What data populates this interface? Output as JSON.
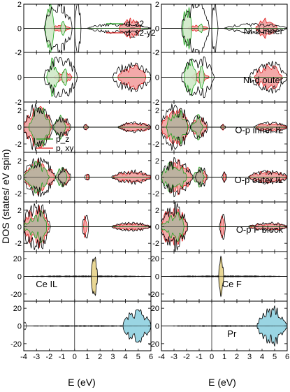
{
  "chart_data": {
    "type": "area",
    "ylabel": "DOS (states/ eV spin)",
    "xlabel": "E (eV)",
    "xlim": [
      -4,
      6
    ],
    "x_ticks": [
      -4,
      -3,
      -2,
      -1,
      0,
      1,
      2,
      3,
      4,
      5,
      6
    ],
    "columns": 2,
    "legend_d": [
      "d_z2",
      "d_x2-y2"
    ],
    "legend_p": [
      "p_z",
      "p_xy"
    ],
    "colors": {
      "total": "#000000",
      "green": "#1aa01a",
      "red": "#e01f1f",
      "red_fill": "#f2a0a0",
      "mix_fill": "#b7b29e",
      "ce_fill": "#e8d48a",
      "pr_fill": "#8fd0e0"
    },
    "panels": [
      {
        "col": 0,
        "row": 0,
        "label": "",
        "ylim": [
          -2,
          2
        ],
        "yticks": [
          -2,
          0,
          2
        ],
        "kind": "d"
      },
      {
        "col": 0,
        "row": 1,
        "label": "",
        "ylim": [
          -2,
          2
        ],
        "yticks": [
          -2,
          0,
          2
        ],
        "kind": "d"
      },
      {
        "col": 0,
        "row": 2,
        "label": "",
        "ylim": [
          -3,
          3
        ],
        "yticks": [
          -2,
          0,
          2
        ],
        "kind": "p"
      },
      {
        "col": 0,
        "row": 3,
        "label": "",
        "ylim": [
          -3,
          3
        ],
        "yticks": [
          -2,
          0,
          2
        ],
        "kind": "p"
      },
      {
        "col": 0,
        "row": 4,
        "label": "",
        "ylim": [
          -3,
          3
        ],
        "yticks": [
          -2,
          0,
          2
        ],
        "kind": "p"
      },
      {
        "col": 0,
        "row": 5,
        "label": "Ce IL",
        "ylim": [
          -28,
          28
        ],
        "yticks": [
          -20,
          0,
          20
        ],
        "kind": "ce"
      },
      {
        "col": 0,
        "row": 6,
        "label": "",
        "ylim": [
          -28,
          28
        ],
        "yticks": [
          -20,
          0,
          20
        ],
        "kind": "pr"
      },
      {
        "col": 1,
        "row": 0,
        "label": "Ni-d inner",
        "ylim": [
          -2,
          2
        ],
        "yticks": [
          -2,
          0,
          2
        ],
        "kind": "d"
      },
      {
        "col": 1,
        "row": 1,
        "label": "Ni-d outer",
        "ylim": [
          -2,
          2
        ],
        "yticks": [
          -2,
          0,
          2
        ],
        "kind": "d"
      },
      {
        "col": 1,
        "row": 2,
        "label": "O-p inner IL",
        "ylim": [
          -3,
          3
        ],
        "yticks": [
          -2,
          0,
          2
        ],
        "kind": "p"
      },
      {
        "col": 1,
        "row": 3,
        "label": "O-p outer IL",
        "ylim": [
          -3,
          3
        ],
        "yticks": [
          -2,
          0,
          2
        ],
        "kind": "p"
      },
      {
        "col": 1,
        "row": 4,
        "label": "O-p F block",
        "ylim": [
          -3,
          3
        ],
        "yticks": [
          -2,
          0,
          2
        ],
        "kind": "p"
      },
      {
        "col": 1,
        "row": 5,
        "label": "Ce F",
        "ylim": [
          -28,
          28
        ],
        "yticks": [
          -20,
          0,
          20
        ],
        "kind": "ce"
      },
      {
        "col": 1,
        "row": 6,
        "label": "Pr",
        "ylim": [
          -28,
          28
        ],
        "yticks": [
          -20,
          0,
          20
        ],
        "kind": "pr"
      }
    ]
  }
}
